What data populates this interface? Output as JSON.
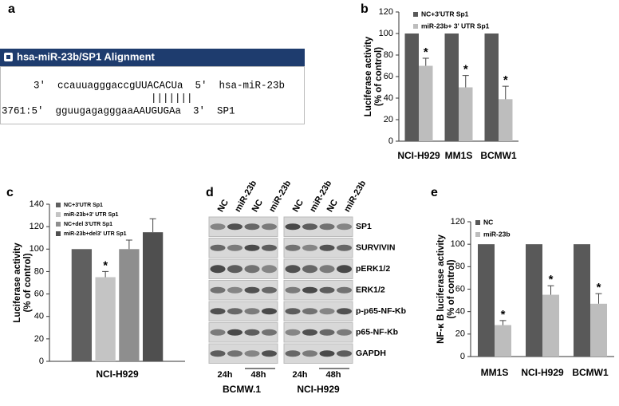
{
  "panel_labels": [
    "a",
    "b",
    "c",
    "d",
    "e"
  ],
  "alignment": {
    "title": "hsa-miR-23b/SP1 Alignment",
    "lines": [
      "3'  ccauuagggaccgUUACACUa  5'  hsa-miR-23b",
      "|||||||",
      "3761:5'  gguugagagggaaAAUGUGAa  3'  SP1"
    ]
  },
  "blot": {
    "lanes": [
      "NC",
      "miR-23b",
      "NC",
      "miR-23b",
      "NC",
      "miR-23b",
      "NC",
      "miR-23b"
    ],
    "proteins": [
      "SP1",
      "SURVIVIN",
      "pERK1/2",
      "ERK1/2",
      "p-p65-NF-Kb",
      "p65-NF-Kb",
      "GAPDH"
    ],
    "times": [
      "24h",
      "48h",
      "24h",
      "48h"
    ],
    "cell_lines": [
      "BCMW.1",
      "NCI-H929"
    ]
  },
  "chart_data": [
    {
      "type": "bar",
      "categories": [
        "NCI-H929",
        "MM1S",
        "BCMW1"
      ],
      "ylabel": [
        "Luciferase activity",
        "(% of control)"
      ],
      "ylim": [
        0,
        120
      ],
      "yticks": [
        0,
        20,
        40,
        60,
        80,
        100,
        120
      ],
      "legend": "upper left",
      "series": [
        {
          "name": "NC+3'UTR Sp1",
          "color": "#595959",
          "values": [
            100,
            100,
            100
          ]
        },
        {
          "name": "miR-23b+ 3' UTR Sp1",
          "color": "#bdbdbd",
          "values": [
            70,
            50,
            39
          ],
          "errors": [
            7,
            11,
            12
          ],
          "markers": [
            "*",
            "*",
            "*"
          ]
        }
      ]
    },
    {
      "type": "bar",
      "categories": [
        "NCI-H929"
      ],
      "ylabel": [
        "Luciferase activity",
        "(% of control)"
      ],
      "ylim": [
        0,
        140
      ],
      "yticks": [
        0,
        20,
        40,
        60,
        80,
        100,
        120,
        140
      ],
      "legend": "upper left",
      "series": [
        {
          "name": "NC+3'UTR Sp1",
          "color": "#5f5f5f",
          "values": [
            100
          ]
        },
        {
          "name": "miR-23b+3' UTR Sp1",
          "color": "#c4c4c4",
          "values": [
            75
          ],
          "errors": [
            5
          ],
          "markers": [
            "*"
          ]
        },
        {
          "name": "NC+del 3'UTR Sp1",
          "color": "#8e8e8e",
          "values": [
            100
          ],
          "errors": [
            8
          ]
        },
        {
          "name": "miR-23b+del3' UTR Sp1",
          "color": "#4f4f4f",
          "values": [
            115
          ],
          "errors": [
            12
          ]
        }
      ]
    },
    {
      "type": "bar",
      "categories": [
        "MM1S",
        "NCI-H929",
        "BCMW1"
      ],
      "ylabel": [
        "NF-κ B luciferase activity",
        "(% of control)"
      ],
      "ylim": [
        0,
        120
      ],
      "yticks": [
        0,
        20,
        40,
        60,
        80,
        100,
        120
      ],
      "legend": "upper left",
      "series": [
        {
          "name": "NC",
          "color": "#595959",
          "values": [
            100,
            100,
            100
          ]
        },
        {
          "name": "miR-23b",
          "color": "#bdbdbd",
          "values": [
            28,
            55,
            47
          ],
          "errors": [
            4,
            8,
            9
          ],
          "markers": [
            "*",
            "*",
            "*"
          ]
        }
      ]
    }
  ]
}
